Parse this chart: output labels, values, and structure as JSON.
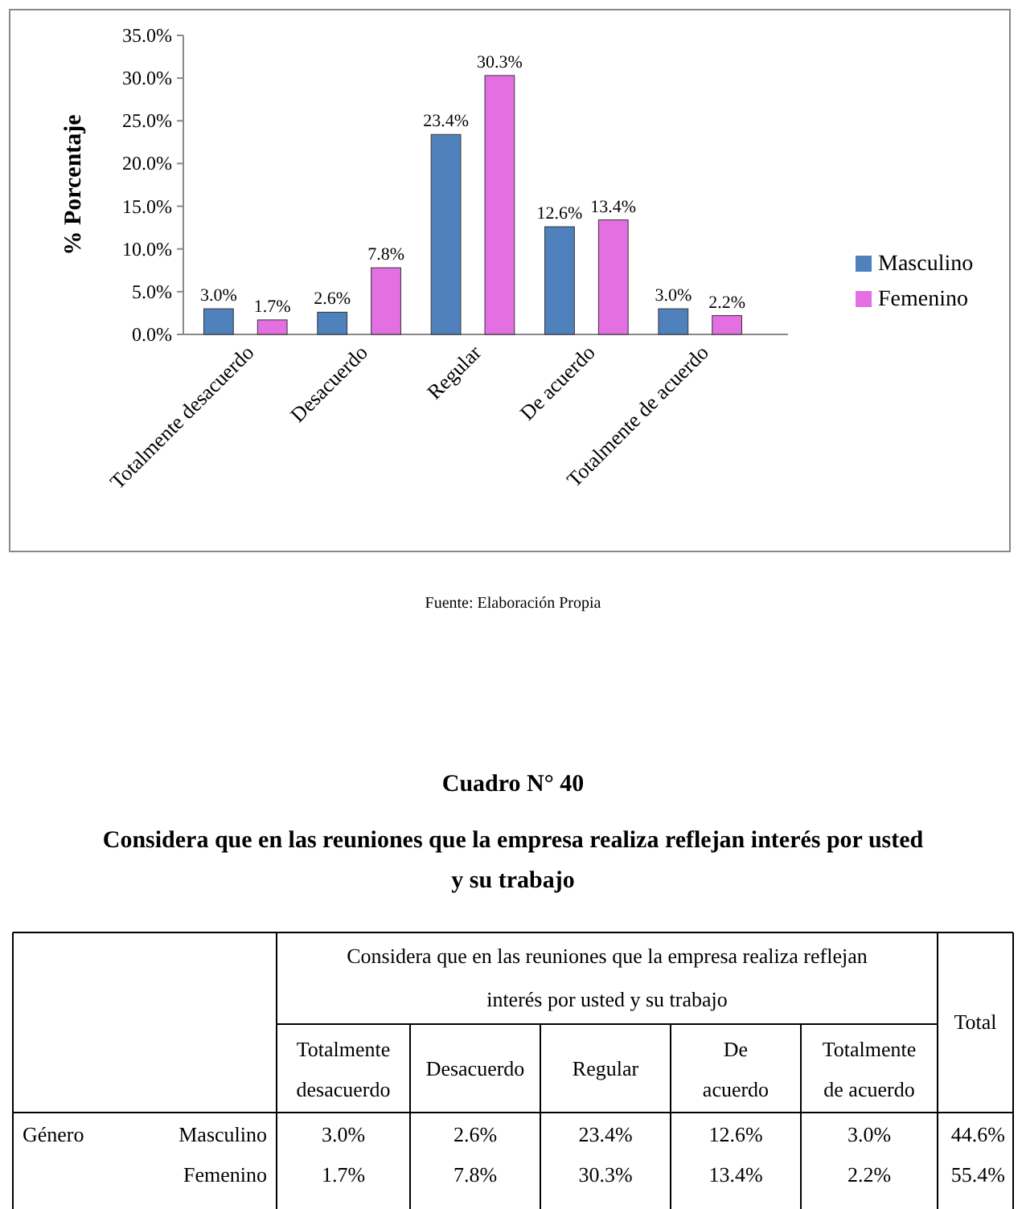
{
  "chart_data": {
    "type": "bar",
    "ylabel": "% Porcentaje",
    "categories": [
      "Totalmente desacuerdo",
      "Desacuerdo",
      "Regular",
      "De acuerdo",
      "Totalmente de acuerdo"
    ],
    "series": [
      {
        "name": "Masculino",
        "color": "#4f81bd",
        "values": [
          3.0,
          2.6,
          23.4,
          12.6,
          3.0
        ],
        "value_labels": [
          "3.0%",
          "2.6%",
          "23.4%",
          "12.6%",
          "3.0%"
        ]
      },
      {
        "name": "Femenino",
        "color": "#e36fe3",
        "values": [
          1.7,
          7.8,
          30.3,
          13.4,
          2.2
        ],
        "value_labels": [
          "1.7%",
          "7.8%",
          "30.3%",
          "13.4%",
          "2.2%"
        ]
      }
    ],
    "ylim": [
      0,
      35
    ],
    "yticks": [
      {
        "value": 0,
        "label": "0.0%"
      },
      {
        "value": 5,
        "label": "5.0%"
      },
      {
        "value": 10,
        "label": "10.0%"
      },
      {
        "value": 15,
        "label": "15.0%"
      },
      {
        "value": 20,
        "label": "20.0%"
      },
      {
        "value": 25,
        "label": "25.0%"
      },
      {
        "value": 30,
        "label": "30.0%"
      },
      {
        "value": 35,
        "label": "35.0%"
      }
    ],
    "grid": false,
    "legend": "right",
    "annotations": [
      "Fuente: Elaboración Propia",
      "Cuadro N° 40",
      "Considera que en las reuniones que la empresa realiza reflejan interés por usted y su trabajo",
      "Total",
      "Género",
      "44.6%",
      "55.4%"
    ]
  }
}
